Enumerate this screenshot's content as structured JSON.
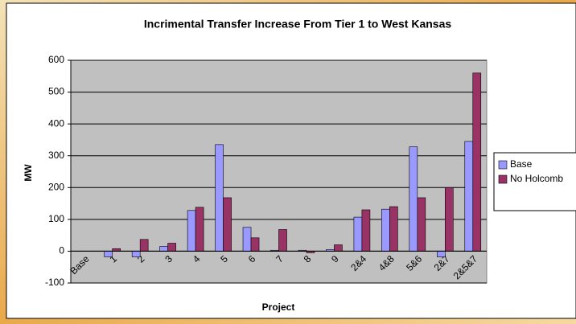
{
  "chart_data": {
    "type": "bar",
    "title": "Incrimental Transfer Increase From Tier 1 to West Kansas",
    "x_label": "Project",
    "y_label": "MW",
    "categories": [
      "Base",
      "1",
      "2",
      "3",
      "4",
      "5",
      "6",
      "7",
      "8",
      "9",
      "2&4",
      "4&8",
      "5&6",
      "2&7",
      "2&5&7"
    ],
    "series": [
      {
        "name": "Base",
        "color": "#9999ff",
        "values": [
          0,
          -18,
          -18,
          15,
          128,
          335,
          75,
          3,
          3,
          5,
          107,
          132,
          328,
          -18,
          345
        ]
      },
      {
        "name": "No Holcomb",
        "color": "#993366",
        "values": [
          0,
          8,
          37,
          25,
          138,
          168,
          42,
          68,
          -5,
          20,
          130,
          140,
          168,
          200,
          560
        ]
      }
    ],
    "ylim": [
      -100,
      600
    ],
    "yticks": [
      -100,
      0,
      100,
      200,
      300,
      400,
      500,
      600
    ],
    "grid": true,
    "legend": "right"
  }
}
